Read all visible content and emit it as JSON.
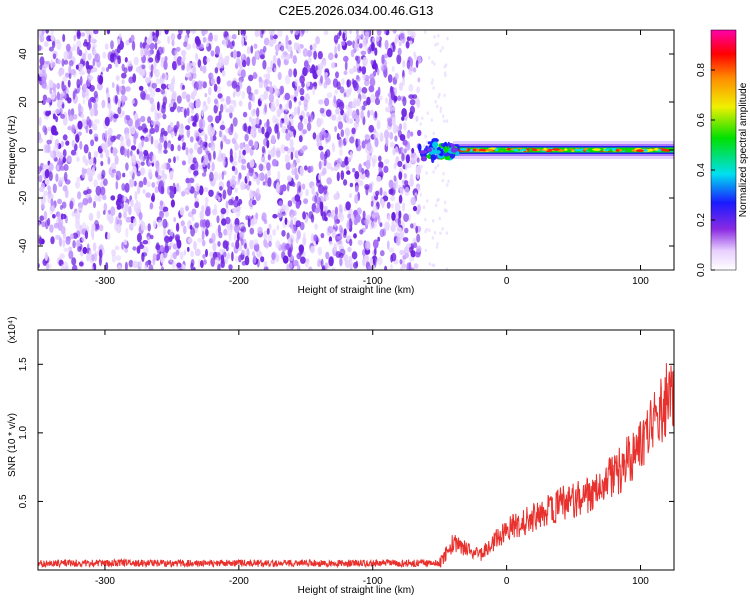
{
  "title": "C2E5.2026.034.00.46.G13",
  "chart_data": [
    {
      "type": "heatmap",
      "xlabel": "Height of straight line (km)",
      "ylabel": "Frequency (Hz)",
      "xlim": [
        -350,
        125
      ],
      "ylim": [
        -50,
        50
      ],
      "xticks": [
        -300,
        -200,
        -100,
        0,
        100
      ],
      "yticks": [
        -40,
        -20,
        0,
        20,
        40
      ],
      "noise_region_x": [
        -350,
        -65
      ],
      "signal_start_x": -65,
      "signal_frequency_hz": 0,
      "colorbar": {
        "label": "Normalized spectral amplitude",
        "range": [
          0,
          0.96
        ],
        "ticks": [
          "0.0",
          "0.2",
          "0.4",
          "0.6",
          "0.8"
        ],
        "tick_values": [
          0,
          0.2,
          0.4,
          0.6,
          0.8
        ]
      }
    },
    {
      "type": "line",
      "xlabel": "Height of straight line (km)",
      "ylabel": "SNR (10 * v/v)",
      "y_multiplier": "(x10⁴)",
      "xlim": [
        -350,
        125
      ],
      "ylim": [
        0,
        17500
      ],
      "xticks": [
        -300,
        -200,
        -100,
        0,
        100
      ],
      "yticks": [
        {
          "value": 5000,
          "label": "0.5"
        },
        {
          "value": 10000,
          "label": "1.0"
        },
        {
          "value": 15000,
          "label": "1.5"
        }
      ],
      "series": [
        {
          "color": "#e8302c",
          "trend_x": [
            -350,
            -50,
            -40,
            -30,
            -20,
            0,
            20,
            40,
            60,
            80,
            100,
            110,
            120,
            125
          ],
          "trend_y": [
            500,
            500,
            2000,
            1600,
            1000,
            3000,
            3800,
            4800,
            5500,
            6800,
            9000,
            10500,
            12500,
            13500
          ]
        }
      ]
    }
  ]
}
